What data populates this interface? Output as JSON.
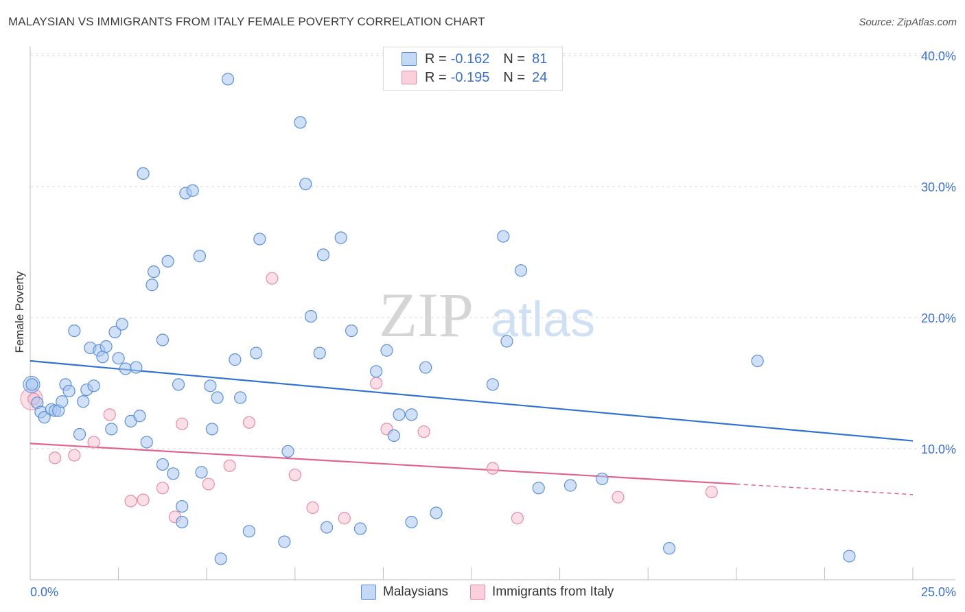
{
  "header": {
    "title": "MALAYSIAN VS IMMIGRANTS FROM ITALY FEMALE POVERTY CORRELATION CHART",
    "source": "Source: ZipAtlas.com"
  },
  "watermark": {
    "zip": "ZIP",
    "atlas": "atlas"
  },
  "legend": {
    "rows": [
      {
        "r_label": "R =",
        "r_value": "-0.162",
        "n_label": "N =",
        "n_value": "81"
      },
      {
        "r_label": "R =",
        "r_value": "-0.195",
        "n_label": "N =",
        "n_value": "24"
      }
    ]
  },
  "bottom_legend": {
    "series1": "Malaysians",
    "series2": "Immigrants from Italy"
  },
  "colors": {
    "blue_fill": "#a9c8f0",
    "blue_stroke": "#5b8fd8",
    "blue_line": "#2f72d2",
    "pink_fill": "#f6bfd0",
    "pink_stroke": "#e88aa8",
    "pink_line": "#e0638e",
    "axis_text": "#3a6fd0",
    "grid": "#d9d9d9"
  },
  "chart_data": {
    "type": "scatter",
    "title": "MALAYSIAN VS IMMIGRANTS FROM ITALY FEMALE POVERTY CORRELATION CHART",
    "xlabel": "",
    "ylabel": "Female Poverty",
    "xlim": [
      0,
      25
    ],
    "ylim": [
      0,
      40
    ],
    "x_tick_labels": [
      "0.0%",
      "25.0%"
    ],
    "y_ticks": [
      10,
      20,
      30,
      40
    ],
    "y_tick_labels": [
      "10.0%",
      "20.0%",
      "30.0%",
      "40.0%"
    ],
    "legend_position": "top-center",
    "series": [
      {
        "name": "Malaysians",
        "r": -0.162,
        "n": 81,
        "trend": {
          "x": [
            0,
            25
          ],
          "y": [
            16.7,
            10.6
          ]
        },
        "points": [
          [
            0.05,
            14.9
          ],
          [
            0.2,
            13.5
          ],
          [
            0.3,
            12.8
          ],
          [
            0.4,
            12.4
          ],
          [
            0.6,
            13
          ],
          [
            0.7,
            12.9
          ],
          [
            0.8,
            12.9
          ],
          [
            0.9,
            13.6
          ],
          [
            1,
            14.9
          ],
          [
            1.1,
            14.4
          ],
          [
            1.25,
            19
          ],
          [
            1.4,
            11.1
          ],
          [
            1.5,
            13.6
          ],
          [
            1.6,
            14.5
          ],
          [
            1.7,
            17.7
          ],
          [
            1.8,
            14.8
          ],
          [
            1.95,
            17.5
          ],
          [
            2.05,
            17
          ],
          [
            2.15,
            17.8
          ],
          [
            2.3,
            11.5
          ],
          [
            2.4,
            18.9
          ],
          [
            2.5,
            16.9
          ],
          [
            2.6,
            19.5
          ],
          [
            2.7,
            16.1
          ],
          [
            2.85,
            12.1
          ],
          [
            3,
            16.2
          ],
          [
            3.1,
            12.5
          ],
          [
            3.2,
            31
          ],
          [
            3.3,
            10.5
          ],
          [
            3.45,
            22.5
          ],
          [
            3.5,
            23.5
          ],
          [
            3.75,
            8.8
          ],
          [
            3.75,
            18.3
          ],
          [
            3.9,
            24.3
          ],
          [
            4.05,
            8.1
          ],
          [
            4.2,
            14.9
          ],
          [
            4.3,
            4.4
          ],
          [
            4.3,
            5.6
          ],
          [
            4.4,
            29.5
          ],
          [
            4.6,
            29.7
          ],
          [
            4.8,
            24.7
          ],
          [
            4.85,
            8.2
          ],
          [
            5.1,
            14.8
          ],
          [
            5.15,
            11.5
          ],
          [
            5.3,
            13.9
          ],
          [
            5.4,
            1.6
          ],
          [
            5.6,
            38.2
          ],
          [
            5.8,
            16.8
          ],
          [
            5.95,
            13.9
          ],
          [
            6.2,
            3.7
          ],
          [
            6.4,
            17.3
          ],
          [
            6.5,
            26
          ],
          [
            7.2,
            2.9
          ],
          [
            7.3,
            9.8
          ],
          [
            7.65,
            34.9
          ],
          [
            7.8,
            30.2
          ],
          [
            7.95,
            20.1
          ],
          [
            8.2,
            17.3
          ],
          [
            8.3,
            24.8
          ],
          [
            8.4,
            4
          ],
          [
            8.8,
            26.1
          ],
          [
            9.1,
            19
          ],
          [
            9.35,
            3.9
          ],
          [
            9.8,
            15.9
          ],
          [
            10.1,
            17.5
          ],
          [
            10.3,
            11
          ],
          [
            10.45,
            12.6
          ],
          [
            10.8,
            4.4
          ],
          [
            10.8,
            12.6
          ],
          [
            11.2,
            16.2
          ],
          [
            11.5,
            5.1
          ],
          [
            13.1,
            14.9
          ],
          [
            13.4,
            26.2
          ],
          [
            13.5,
            18.2
          ],
          [
            13.9,
            23.6
          ],
          [
            14.4,
            7
          ],
          [
            15.3,
            7.2
          ],
          [
            16.2,
            7.7
          ],
          [
            18.1,
            2.4
          ],
          [
            20.6,
            16.7
          ],
          [
            23.2,
            1.8
          ]
        ]
      },
      {
        "name": "Immigrants from Italy",
        "r": -0.195,
        "n": 24,
        "trend": {
          "x": [
            0,
            20
          ],
          "y": [
            10.4,
            7.3
          ],
          "dashed_to": {
            "x": 25,
            "y": 6.5
          }
        },
        "points": [
          [
            0.1,
            13.8
          ],
          [
            0.7,
            9.3
          ],
          [
            1.25,
            9.5
          ],
          [
            1.8,
            10.5
          ],
          [
            2.25,
            12.6
          ],
          [
            2.85,
            6.0
          ],
          [
            3.2,
            6.1
          ],
          [
            3.75,
            7.0
          ],
          [
            4.1,
            4.8
          ],
          [
            4.3,
            11.9
          ],
          [
            5.05,
            7.3
          ],
          [
            5.65,
            8.7
          ],
          [
            6.2,
            12
          ],
          [
            6.85,
            23
          ],
          [
            7.5,
            8
          ],
          [
            8.0,
            5.5
          ],
          [
            8.9,
            4.7
          ],
          [
            9.8,
            15
          ],
          [
            10.1,
            11.5
          ],
          [
            11.15,
            11.3
          ],
          [
            13.1,
            8.5
          ],
          [
            13.8,
            4.7
          ],
          [
            16.65,
            6.3
          ],
          [
            19.3,
            6.7
          ]
        ]
      }
    ]
  }
}
